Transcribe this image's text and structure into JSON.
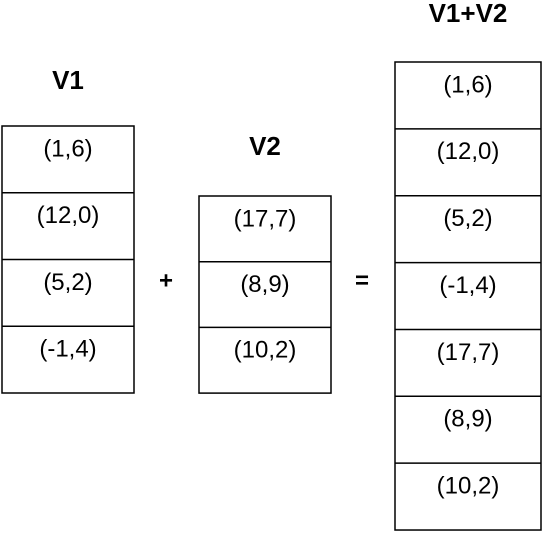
{
  "vectors": [
    {
      "label": "V1",
      "items": [
        "(1,6)",
        "(12,0)",
        "(5,2)",
        "(-1,4)"
      ]
    },
    {
      "label": "V2",
      "items": [
        "(17,7)",
        "(8,9)",
        "(10,2)"
      ]
    },
    {
      "label": "V1+V2",
      "items": [
        "(1,6)",
        "(12,0)",
        "(5,2)",
        "(-1,4)",
        "(17,7)",
        "(8,9)",
        "(10,2)"
      ]
    }
  ],
  "operators": [
    "+",
    "="
  ]
}
